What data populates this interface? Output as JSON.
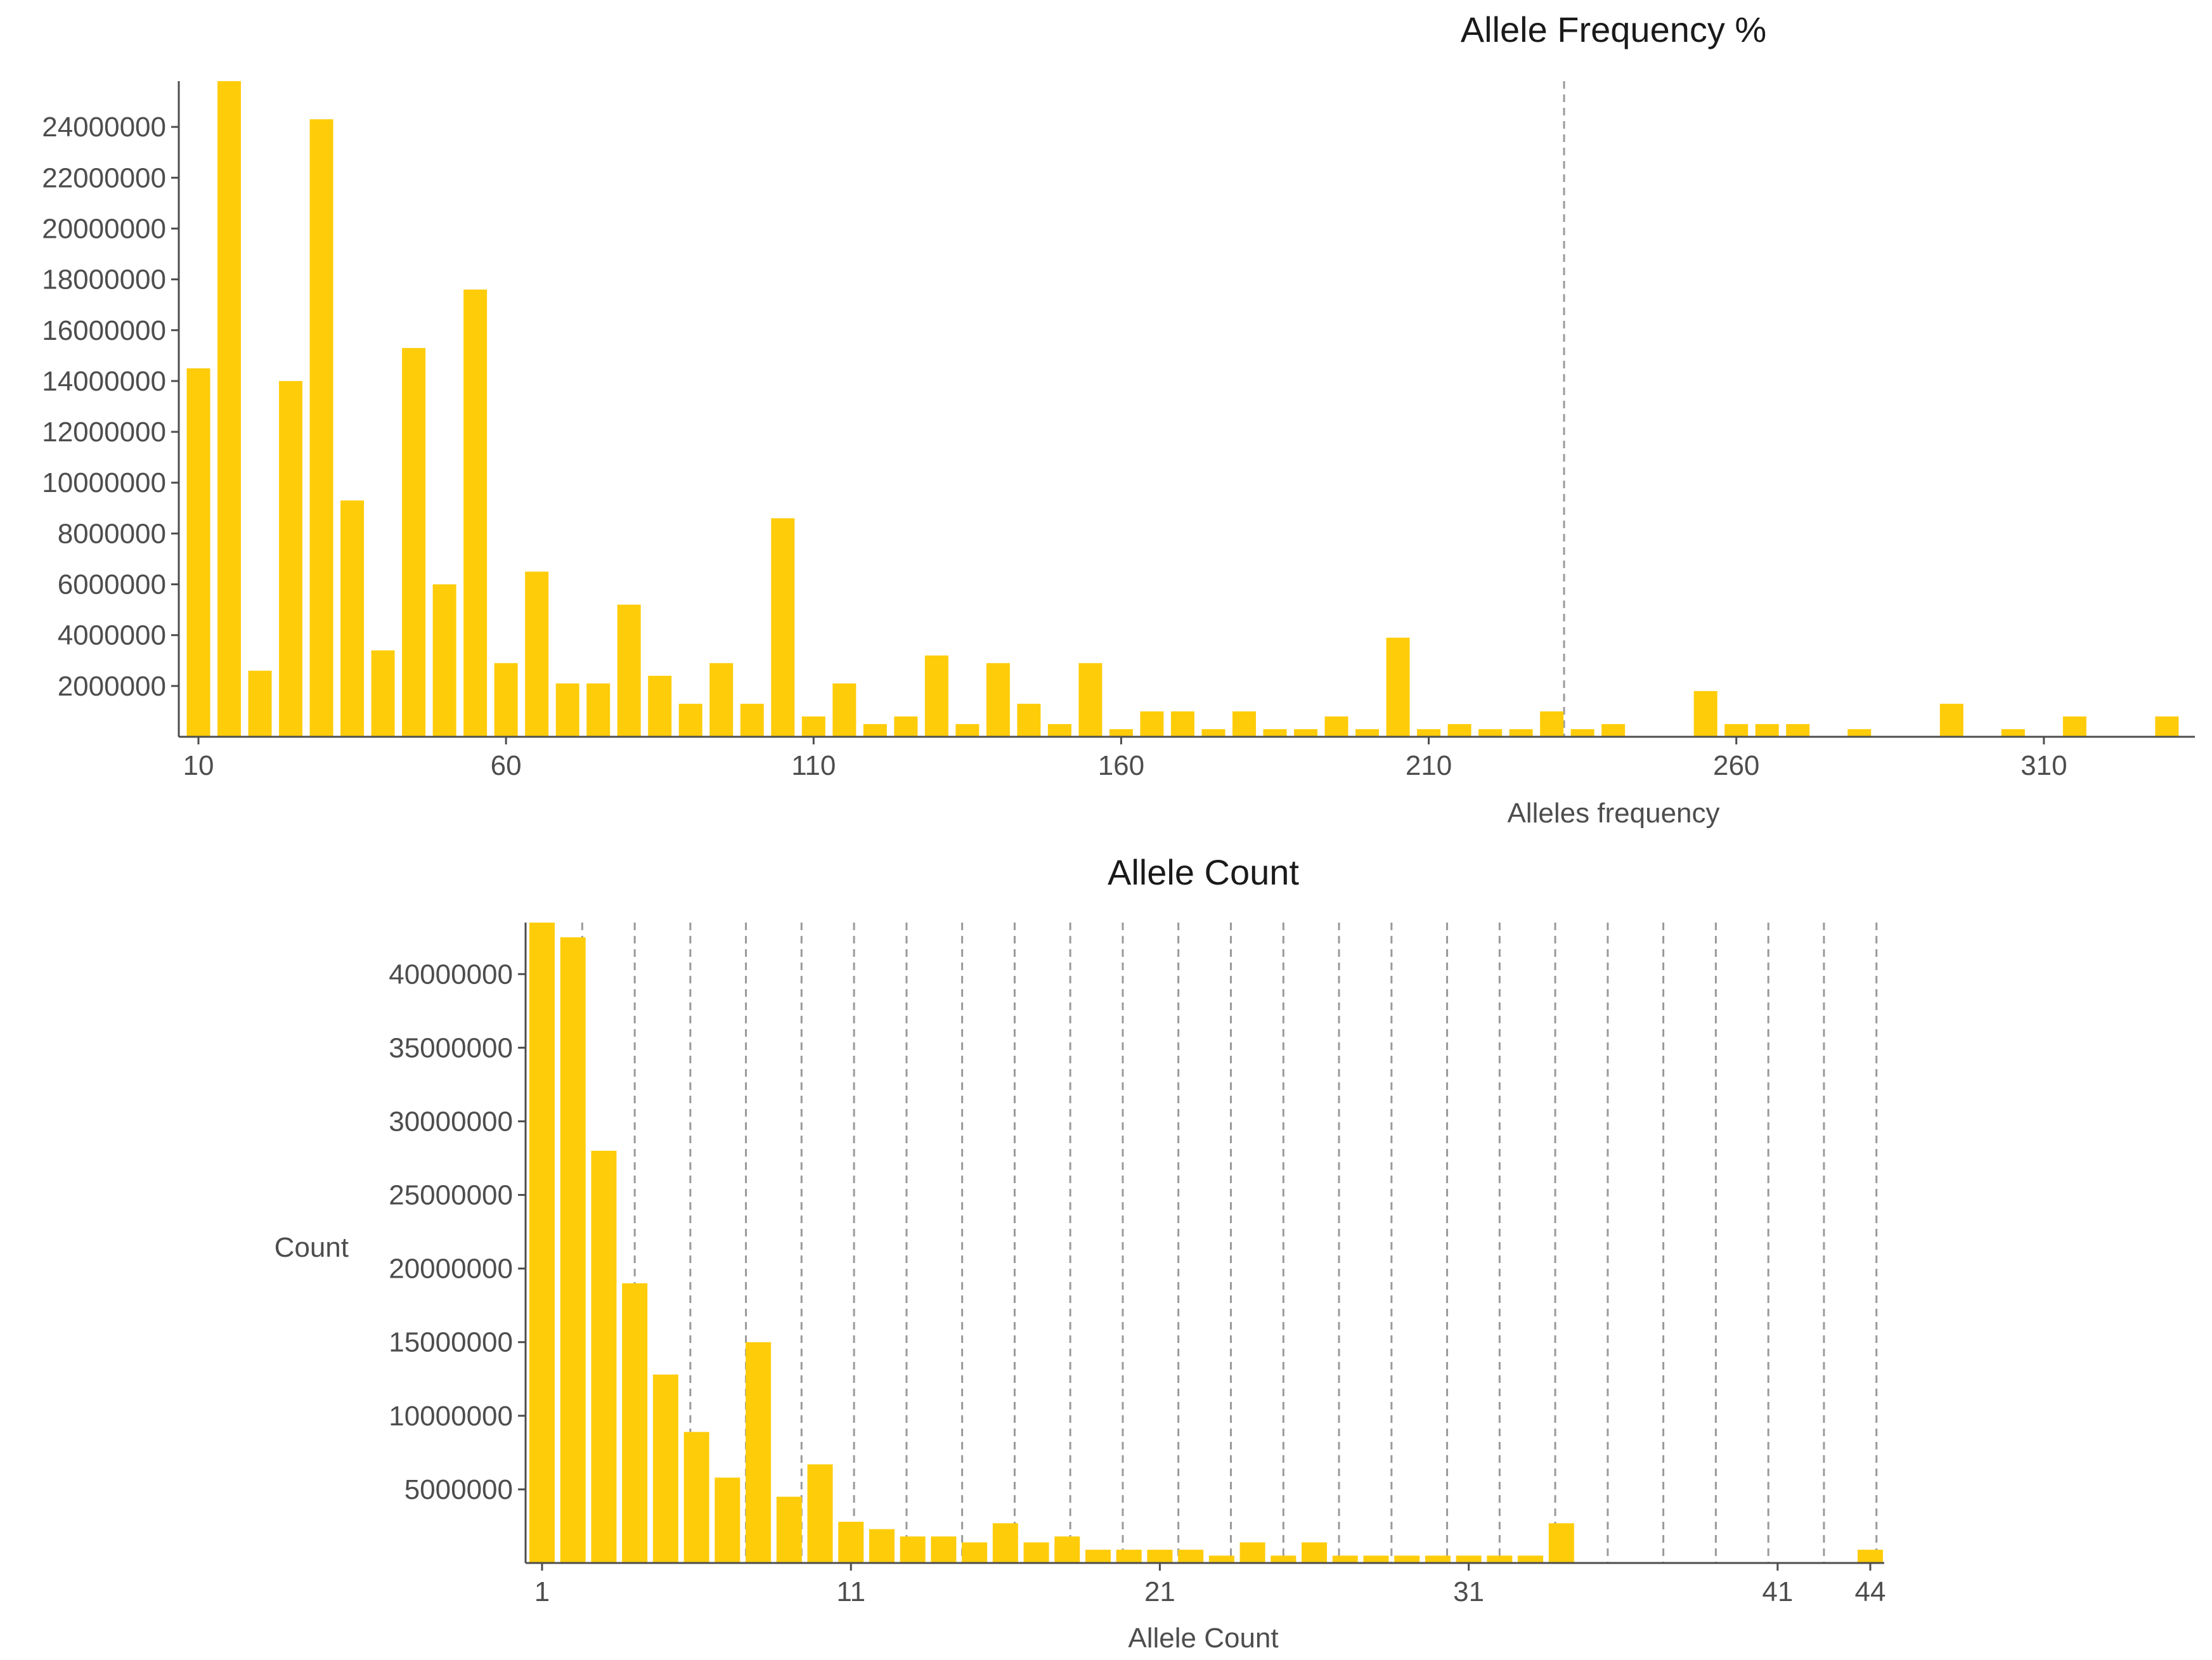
{
  "chart_data": [
    {
      "type": "bar",
      "title": "Allele Frequency %",
      "xlabel": "Alleles frequency",
      "ylabel": "",
      "color": "#FFCC0A",
      "xlim": [
        10,
        333
      ],
      "ylim": [
        0,
        25800000
      ],
      "x_ticks": [
        10,
        60,
        110,
        160,
        210,
        260,
        310
      ],
      "x_tick_labels": [
        "10",
        "60",
        "110",
        "160",
        "210",
        "260",
        "310"
      ],
      "y_ticks": [
        2000000,
        4000000,
        6000000,
        8000000,
        10000000,
        12000000,
        14000000,
        16000000,
        18000000,
        20000000,
        22000000,
        24000000
      ],
      "y_tick_labels": [
        "2000000",
        "4000000",
        "6000000",
        "8000000",
        "10000000",
        "12000000",
        "14000000",
        "16000000",
        "18000000",
        "20000000",
        "22000000",
        "24000000"
      ],
      "vlines": [
        232
      ],
      "x": [
        10,
        15,
        20,
        25,
        30,
        35,
        40,
        45,
        50,
        55,
        60,
        65,
        70,
        75,
        80,
        85,
        90,
        95,
        100,
        105,
        110,
        115,
        120,
        125,
        130,
        135,
        140,
        145,
        150,
        155,
        160,
        165,
        170,
        175,
        180,
        185,
        190,
        195,
        200,
        205,
        210,
        215,
        220,
        225,
        230,
        235,
        240,
        255,
        260,
        265,
        270,
        280,
        295,
        305,
        315,
        330
      ],
      "values": [
        14500000,
        25800000,
        2600000,
        14000000,
        24300000,
        9300000,
        3400000,
        15300000,
        6000000,
        17600000,
        2900000,
        6500000,
        2100000,
        2100000,
        5200000,
        2400000,
        1300000,
        2900000,
        1300000,
        8600000,
        800000,
        2100000,
        500000,
        800000,
        3200000,
        500000,
        2900000,
        1300000,
        500000,
        2900000,
        300000,
        1000000,
        1000000,
        300000,
        1000000,
        300000,
        300000,
        800000,
        300000,
        3900000,
        300000,
        500000,
        300000,
        300000,
        1000000,
        300000,
        500000,
        1800000,
        500000,
        500000,
        500000,
        300000,
        1300000,
        300000,
        800000,
        800000
      ]
    },
    {
      "type": "bar",
      "title": "Allele Count",
      "xlabel": "Allele Count",
      "ylabel": "Count",
      "color": "#FFCC0A",
      "xlim": [
        1,
        44
      ],
      "ylim": [
        0,
        43500000
      ],
      "x_ticks": [
        1,
        11,
        21,
        31,
        41,
        44
      ],
      "x_tick_labels": [
        "1",
        "11",
        "21",
        "31",
        "41",
        "44"
      ],
      "y_ticks": [
        5000000,
        10000000,
        15000000,
        20000000,
        25000000,
        30000000,
        35000000,
        40000000
      ],
      "y_tick_labels": [
        "5000000",
        "10000000",
        "15000000",
        "20000000",
        "25000000",
        "30000000",
        "35000000",
        "40000000"
      ],
      "vlines": [
        2.3,
        4.0,
        5.8,
        7.6,
        9.4,
        11.1,
        12.8,
        14.6,
        16.3,
        18.1,
        19.8,
        21.6,
        23.3,
        25.0,
        26.8,
        28.5,
        30.3,
        32.0,
        33.8,
        35.5,
        37.3,
        39.0,
        40.7,
        42.5,
        44.2
      ],
      "x": [
        1,
        2,
        3,
        4,
        5,
        6,
        7,
        8,
        9,
        10,
        11,
        12,
        13,
        14,
        15,
        16,
        17,
        18,
        19,
        20,
        21,
        22,
        23,
        24,
        25,
        26,
        27,
        28,
        29,
        30,
        31,
        32,
        33,
        34,
        44
      ],
      "values": [
        43500000,
        42500000,
        28000000,
        19000000,
        12800000,
        8900000,
        5800000,
        15000000,
        4500000,
        6700000,
        2800000,
        2300000,
        1800000,
        1800000,
        1400000,
        2700000,
        1400000,
        1800000,
        900000,
        900000,
        900000,
        900000,
        500000,
        1400000,
        500000,
        1400000,
        500000,
        500000,
        500000,
        500000,
        500000,
        500000,
        500000,
        2700000,
        900000
      ]
    }
  ]
}
